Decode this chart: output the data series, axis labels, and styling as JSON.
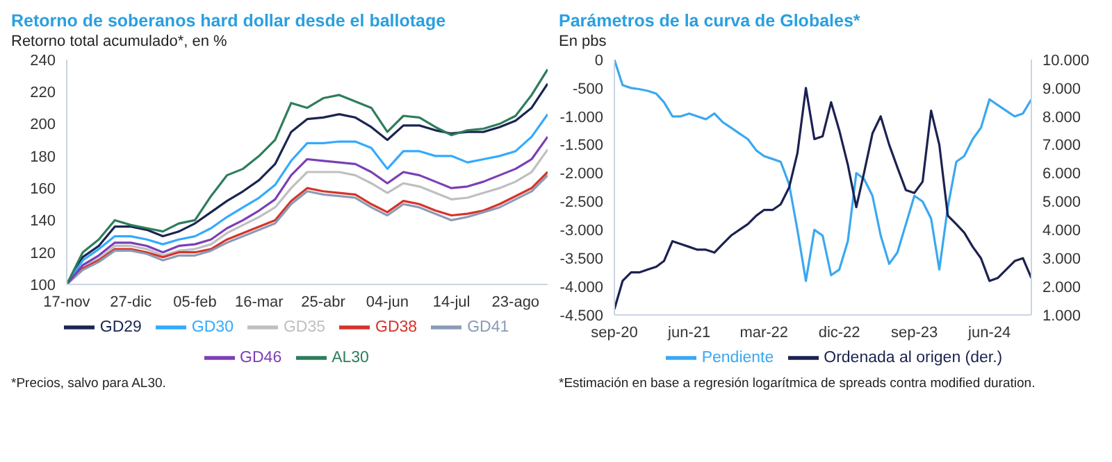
{
  "chart_data": [
    {
      "type": "line",
      "title": "Retorno de soberanos hard dollar desde el ballotage",
      "ylabel": "Retorno total acumulado*, en %",
      "categories": [
        "17-nov",
        null,
        null,
        null,
        "27-dic",
        null,
        null,
        null,
        "05-feb",
        null,
        null,
        null,
        "16-mar",
        null,
        null,
        null,
        "25-abr",
        null,
        null,
        null,
        "04-jun",
        null,
        null,
        null,
        "14-jul",
        null,
        null,
        null,
        "23-ago",
        null,
        null
      ],
      "ylim": [
        100,
        240
      ],
      "yticks": [
        100,
        120,
        140,
        160,
        180,
        200,
        220,
        240
      ],
      "legend": "bottom",
      "grid": false,
      "series": [
        {
          "name": "GD29",
          "color": "#1a2550",
          "values": [
            100,
            117,
            124,
            136,
            136,
            134,
            130,
            133,
            138,
            145,
            152,
            158,
            165,
            175,
            195,
            203,
            204,
            206,
            204,
            198,
            190,
            199,
            199,
            196,
            194,
            195,
            195,
            198,
            202,
            210,
            225
          ]
        },
        {
          "name": "GD30",
          "color": "#33aaff",
          "values": [
            100,
            115,
            122,
            130,
            130,
            128,
            125,
            128,
            130,
            135,
            142,
            148,
            154,
            162,
            177,
            188,
            188,
            189,
            189,
            185,
            172,
            183,
            183,
            180,
            180,
            176,
            178,
            180,
            183,
            192,
            206
          ]
        },
        {
          "name": "GD35",
          "color": "#bfbfbf",
          "values": [
            100,
            111,
            116,
            124,
            124,
            122,
            118,
            121,
            122,
            125,
            132,
            137,
            142,
            148,
            160,
            170,
            170,
            170,
            168,
            163,
            157,
            163,
            161,
            157,
            153,
            154,
            157,
            160,
            164,
            170,
            184
          ]
        },
        {
          "name": "GD38",
          "color": "#d6332b",
          "values": [
            100,
            110,
            115,
            122,
            122,
            120,
            117,
            120,
            120,
            122,
            128,
            132,
            136,
            140,
            152,
            160,
            158,
            157,
            156,
            150,
            145,
            152,
            150,
            146,
            143,
            144,
            146,
            150,
            155,
            160,
            170
          ]
        },
        {
          "name": "GD41",
          "color": "#8a9bb5",
          "values": [
            100,
            109,
            114,
            121,
            121,
            119,
            115,
            118,
            118,
            121,
            126,
            130,
            134,
            138,
            150,
            158,
            156,
            155,
            154,
            148,
            143,
            150,
            148,
            144,
            140,
            142,
            145,
            148,
            153,
            158,
            168
          ]
        },
        {
          "name": "GD46",
          "color": "#7b3fb5",
          "values": [
            100,
            112,
            118,
            126,
            126,
            124,
            120,
            124,
            125,
            128,
            135,
            140,
            146,
            153,
            168,
            178,
            177,
            176,
            175,
            170,
            163,
            170,
            168,
            164,
            160,
            161,
            164,
            168,
            172,
            178,
            192
          ]
        },
        {
          "name": "AL30",
          "color": "#2e7d5b",
          "values": [
            100,
            120,
            128,
            140,
            137,
            135,
            133,
            138,
            140,
            155,
            168,
            172,
            180,
            190,
            213,
            210,
            216,
            218,
            214,
            210,
            195,
            205,
            204,
            198,
            193,
            196,
            197,
            200,
            205,
            218,
            234
          ]
        }
      ],
      "annotations": [
        "*Precios, salvo para AL30."
      ]
    },
    {
      "type": "line",
      "title": "Parámetros de la curva de Globales*",
      "ylabel": "En pbs",
      "x": [
        "2020-09",
        "2020-10",
        "2020-11",
        "2020-12",
        "2021-01",
        "2021-02",
        "2021-03",
        "2021-04",
        "2021-05",
        "2021-06",
        "2021-07",
        "2021-08",
        "2021-09",
        "2021-10",
        "2021-11",
        "2021-12",
        "2022-01",
        "2022-02",
        "2022-03",
        "2022-04",
        "2022-05",
        "2022-06",
        "2022-07",
        "2022-08",
        "2022-09",
        "2022-10",
        "2022-11",
        "2022-12",
        "2023-01",
        "2023-02",
        "2023-03",
        "2023-04",
        "2023-05",
        "2023-06",
        "2023-07",
        "2023-08",
        "2023-09",
        "2023-10",
        "2023-11",
        "2023-12",
        "2024-01",
        "2024-02",
        "2024-03",
        "2024-04",
        "2024-05",
        "2024-06",
        "2024-07",
        "2024-08",
        "2024-09",
        "2024-10",
        "2024-11"
      ],
      "xlim": [
        "2020-09",
        "2024-11"
      ],
      "xticks": [
        {
          "value": "2020-09",
          "label": "sep-20"
        },
        {
          "value": "2021-06",
          "label": "jun-21"
        },
        {
          "value": "2022-03",
          "label": "mar-22"
        },
        {
          "value": "2022-12",
          "label": "dic-22"
        },
        {
          "value": "2023-09",
          "label": "sep-23"
        },
        {
          "value": "2024-06",
          "label": "jun-24"
        }
      ],
      "ylim": [
        -4500,
        0
      ],
      "yticks": [
        {
          "value": -4500,
          "label": "-4.500"
        },
        {
          "value": -4000,
          "label": "-4.000"
        },
        {
          "value": -3500,
          "label": "-3.500"
        },
        {
          "value": -3000,
          "label": "-3.000"
        },
        {
          "value": -2500,
          "label": "-2.500"
        },
        {
          "value": -2000,
          "label": "-2.000"
        },
        {
          "value": -1500,
          "label": "-1.500"
        },
        {
          "value": -1000,
          "label": "-1.000"
        },
        {
          "value": -500,
          "label": "-500"
        },
        0
      ],
      "y2lim": [
        1000,
        10000
      ],
      "y2ticks": [
        {
          "value": 1000,
          "label": "1.000"
        },
        {
          "value": 2000,
          "label": "2.000"
        },
        {
          "value": 3000,
          "label": "3.000"
        },
        {
          "value": 4000,
          "label": "4.000"
        },
        {
          "value": 5000,
          "label": "5.000"
        },
        {
          "value": 6000,
          "label": "6.000"
        },
        {
          "value": 7000,
          "label": "7.000"
        },
        {
          "value": 8000,
          "label": "8.000"
        },
        {
          "value": 9000,
          "label": "9.000"
        },
        {
          "value": 10000,
          "label": "10.000"
        }
      ],
      "legend": "bottom",
      "grid": false,
      "series": [
        {
          "name": "Pendiente",
          "color": "#3aa8f0",
          "values": [
            0,
            -450,
            -500,
            -520,
            -550,
            -600,
            -750,
            -1000,
            -1000,
            -950,
            -1000,
            -1050,
            -950,
            -1100,
            -1200,
            -1300,
            -1400,
            -1600,
            -1700,
            -1750,
            -1800,
            -2200,
            -3000,
            -3900,
            -3000,
            -3100,
            -3800,
            -3700,
            -3200,
            -2000,
            -2100,
            -2400,
            -3100,
            -3600,
            -3400,
            -2900,
            -2400,
            -2500,
            -2800,
            -3700,
            -2600,
            -1800,
            -1700,
            -1400,
            -1200,
            -700,
            -800,
            -900,
            -1000,
            -950,
            -700
          ]
        },
        {
          "name": "Ordenada al origen (der.)",
          "color": "#1b2250",
          "axis": "y2",
          "values": [
            1200,
            2200,
            2500,
            2500,
            2600,
            2700,
            2900,
            3600,
            3500,
            3400,
            3300,
            3300,
            3200,
            3500,
            3800,
            4000,
            4200,
            4500,
            4700,
            4700,
            4900,
            5500,
            6700,
            9000,
            7200,
            7300,
            8500,
            7500,
            6300,
            4800,
            6000,
            7400,
            8000,
            7000,
            6200,
            5400,
            5300,
            5700,
            8200,
            7000,
            4500,
            4200,
            3900,
            3400,
            3000,
            2200,
            2300,
            2600,
            2900,
            3000,
            2300
          ]
        }
      ],
      "annotations": [
        "*Estimación en base a regresión logarítmica de spreads contra modified duration."
      ]
    }
  ]
}
